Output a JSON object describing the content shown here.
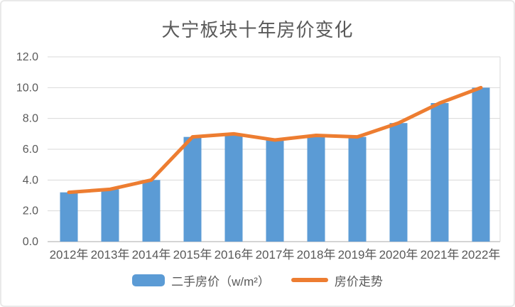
{
  "frame": {
    "background": "#ffffff",
    "border_color": "#e9e9e9"
  },
  "chart_data": {
    "type": "bar",
    "subtype": "bar-with-line-overlay",
    "title": "大宁板块十年房价变化",
    "categories": [
      "2012年",
      "2013年",
      "2014年",
      "2015年",
      "2016年",
      "2017年",
      "2018年",
      "2019年",
      "2020年",
      "2021年",
      "2022年"
    ],
    "series": [
      {
        "name": "二手房价（w/m²）",
        "type": "bar",
        "color": "#5B9BD5",
        "values": [
          3.2,
          3.4,
          4.0,
          6.8,
          7.0,
          6.6,
          6.9,
          6.8,
          7.7,
          9.0,
          10.0
        ]
      },
      {
        "name": "房价走势",
        "type": "line",
        "color": "#ED7D31",
        "values": [
          3.2,
          3.4,
          4.0,
          6.8,
          7.0,
          6.6,
          6.9,
          6.8,
          7.7,
          9.0,
          10.0
        ]
      }
    ],
    "xlabel": "",
    "ylabel": "",
    "ylim": [
      0,
      12
    ],
    "y_tick_step": 2,
    "y_ticks": [
      "0.0",
      "2.0",
      "4.0",
      "6.0",
      "8.0",
      "10.0",
      "12.0"
    ],
    "grid": "horizontal",
    "gridline_color": "#d9d9d9",
    "axis_line_color": "#c6c6c6",
    "tick_label_color": "#595959",
    "title_color": "#595959",
    "legend_position": "bottom"
  }
}
